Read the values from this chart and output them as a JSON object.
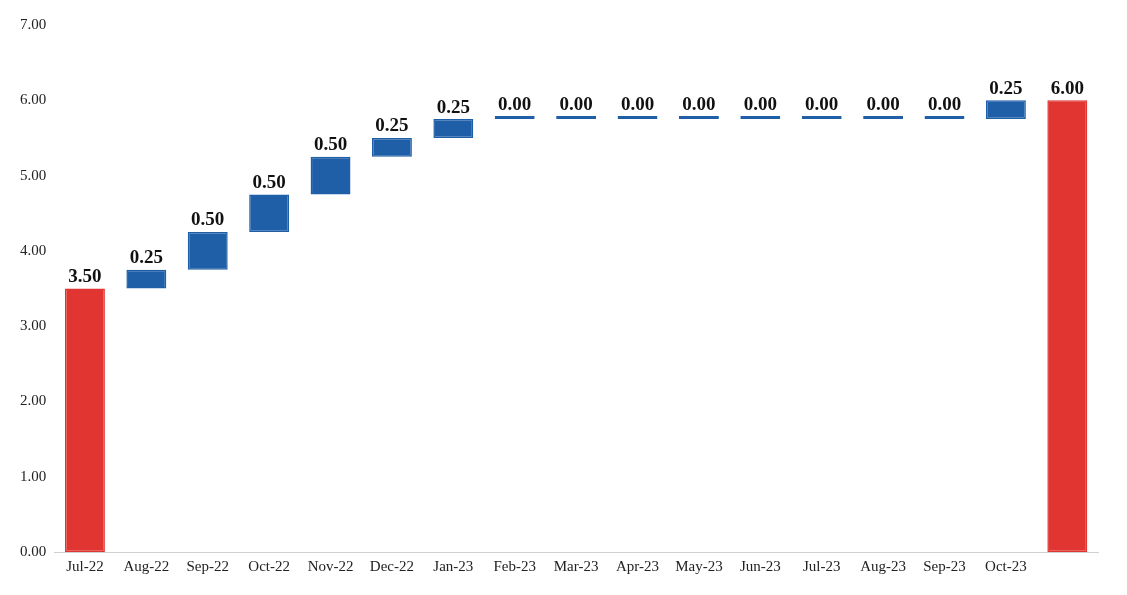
{
  "chart_data": {
    "type": "bar",
    "categories": [
      "Jul-22",
      "Aug-22",
      "Sep-22",
      "Oct-22",
      "Nov-22",
      "Dec-22",
      "Jan-23",
      "Feb-23",
      "Mar-23",
      "Apr-23",
      "May-23",
      "Jun-23",
      "Jul-23",
      "Aug-23",
      "Sep-23",
      "Oct-23",
      null
    ],
    "values": [
      3.5,
      0.25,
      0.5,
      0.5,
      0.5,
      0.25,
      0.25,
      0,
      0,
      0,
      0,
      0,
      0,
      0,
      0,
      0.25,
      6
    ],
    "base": [
      0,
      3.5,
      3.75,
      4.25,
      4.75,
      5.25,
      5.5,
      5.75,
      5.75,
      5.75,
      5.75,
      5.75,
      5.75,
      5.75,
      5.75,
      5.75,
      0
    ],
    "colors": [
      "#e03530",
      "#1f5fa8",
      "#1f5fa8",
      "#1f5fa8",
      "#1f5fa8",
      "#1f5fa8",
      "#1f5fa8",
      "#1f5fa8",
      "#1f5fa8",
      "#1f5fa8",
      "#1f5fa8",
      "#1f5fa8",
      "#1f5fa8",
      "#1f5fa8",
      "#1f5fa8",
      "#1f5fa8",
      "#e03530"
    ],
    "value_labels": [
      "3.50",
      "0.25",
      "0.50",
      "0.50",
      "0.50",
      "0.25",
      "0.25",
      "0.00",
      "0.00",
      "0.00",
      "0.00",
      "0.00",
      "0.00",
      "0.00",
      "0.00",
      "0.25",
      "6.00"
    ],
    "ylim": [
      0,
      7
    ],
    "yticks": [
      {
        "value": 0,
        "label": "0.00"
      },
      {
        "value": 1,
        "label": "1.00"
      },
      {
        "value": 2,
        "label": "2.00"
      },
      {
        "value": 3,
        "label": "3.00"
      },
      {
        "value": 4,
        "label": "4.00"
      },
      {
        "value": 5,
        "label": "5.00"
      },
      {
        "value": 6,
        "label": "6.00"
      },
      {
        "value": 7,
        "label": "7.00"
      }
    ],
    "grid": false,
    "legend": false
  }
}
